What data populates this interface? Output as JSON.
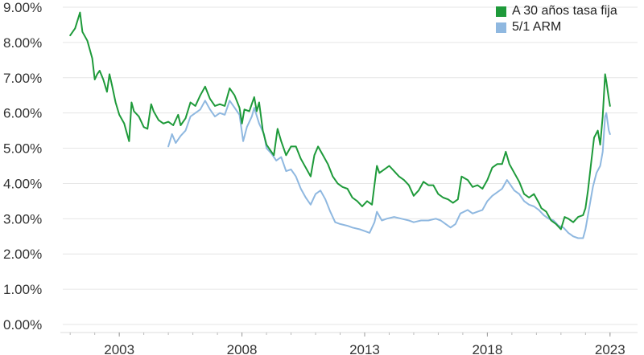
{
  "chart_data": {
    "type": "line",
    "title": "",
    "xlabel": "",
    "ylabel": "",
    "ylim": [
      0,
      9
    ],
    "xlim": [
      2000.6,
      2023.4
    ],
    "y_ticks": [
      {
        "value": 0,
        "label": "0.00%"
      },
      {
        "value": 1,
        "label": "1.00%"
      },
      {
        "value": 2,
        "label": "2.00%"
      },
      {
        "value": 3,
        "label": "3.00%"
      },
      {
        "value": 4,
        "label": "4.00%"
      },
      {
        "value": 5,
        "label": "5.00%"
      },
      {
        "value": 6,
        "label": "6.00%"
      },
      {
        "value": 7,
        "label": "7.00%"
      },
      {
        "value": 8,
        "label": "8.00%"
      },
      {
        "value": 9,
        "label": "9.00%"
      }
    ],
    "x_ticks": [
      {
        "value": 2003,
        "label": "2003"
      },
      {
        "value": 2008,
        "label": "2008"
      },
      {
        "value": 2013,
        "label": "2013"
      },
      {
        "value": 2018,
        "label": "2018"
      },
      {
        "value": 2023,
        "label": "2023"
      }
    ],
    "grid": true,
    "legend_position": "top-right",
    "series": [
      {
        "name": "A 30 años tasa fija",
        "color": "#1e9a3a",
        "points": [
          [
            2001.0,
            8.2
          ],
          [
            2001.2,
            8.4
          ],
          [
            2001.4,
            8.85
          ],
          [
            2001.5,
            8.3
          ],
          [
            2001.7,
            8.05
          ],
          [
            2001.9,
            7.55
          ],
          [
            2002.0,
            6.95
          ],
          [
            2002.1,
            7.1
          ],
          [
            2002.2,
            7.2
          ],
          [
            2002.35,
            6.95
          ],
          [
            2002.5,
            6.6
          ],
          [
            2002.6,
            7.1
          ],
          [
            2002.7,
            6.8
          ],
          [
            2002.85,
            6.3
          ],
          [
            2003.0,
            5.95
          ],
          [
            2003.2,
            5.7
          ],
          [
            2003.3,
            5.45
          ],
          [
            2003.4,
            5.2
          ],
          [
            2003.5,
            6.3
          ],
          [
            2003.6,
            6.05
          ],
          [
            2003.8,
            5.9
          ],
          [
            2004.0,
            5.6
          ],
          [
            2004.15,
            5.55
          ],
          [
            2004.3,
            6.25
          ],
          [
            2004.4,
            6.05
          ],
          [
            2004.6,
            5.8
          ],
          [
            2004.8,
            5.7
          ],
          [
            2005.0,
            5.75
          ],
          [
            2005.2,
            5.65
          ],
          [
            2005.4,
            5.95
          ],
          [
            2005.5,
            5.65
          ],
          [
            2005.7,
            5.85
          ],
          [
            2005.9,
            6.3
          ],
          [
            2006.1,
            6.2
          ],
          [
            2006.3,
            6.5
          ],
          [
            2006.5,
            6.75
          ],
          [
            2006.7,
            6.4
          ],
          [
            2006.9,
            6.2
          ],
          [
            2007.1,
            6.25
          ],
          [
            2007.3,
            6.2
          ],
          [
            2007.5,
            6.7
          ],
          [
            2007.7,
            6.5
          ],
          [
            2007.9,
            6.15
          ],
          [
            2008.0,
            5.7
          ],
          [
            2008.1,
            6.1
          ],
          [
            2008.3,
            6.05
          ],
          [
            2008.5,
            6.45
          ],
          [
            2008.6,
            6.05
          ],
          [
            2008.7,
            6.3
          ],
          [
            2008.85,
            5.5
          ],
          [
            2009.0,
            5.1
          ],
          [
            2009.2,
            4.9
          ],
          [
            2009.3,
            4.8
          ],
          [
            2009.45,
            5.55
          ],
          [
            2009.6,
            5.2
          ],
          [
            2009.8,
            4.8
          ],
          [
            2010.0,
            5.05
          ],
          [
            2010.2,
            5.05
          ],
          [
            2010.4,
            4.7
          ],
          [
            2010.6,
            4.45
          ],
          [
            2010.8,
            4.2
          ],
          [
            2010.95,
            4.8
          ],
          [
            2011.1,
            5.05
          ],
          [
            2011.3,
            4.8
          ],
          [
            2011.5,
            4.55
          ],
          [
            2011.7,
            4.2
          ],
          [
            2011.9,
            4.0
          ],
          [
            2012.1,
            3.9
          ],
          [
            2012.3,
            3.85
          ],
          [
            2012.5,
            3.6
          ],
          [
            2012.7,
            3.5
          ],
          [
            2012.9,
            3.35
          ],
          [
            2013.1,
            3.5
          ],
          [
            2013.3,
            3.4
          ],
          [
            2013.5,
            4.5
          ],
          [
            2013.6,
            4.3
          ],
          [
            2013.8,
            4.4
          ],
          [
            2014.0,
            4.5
          ],
          [
            2014.2,
            4.35
          ],
          [
            2014.4,
            4.2
          ],
          [
            2014.6,
            4.1
          ],
          [
            2014.8,
            3.95
          ],
          [
            2015.0,
            3.65
          ],
          [
            2015.2,
            3.8
          ],
          [
            2015.4,
            4.05
          ],
          [
            2015.6,
            3.95
          ],
          [
            2015.8,
            3.95
          ],
          [
            2016.0,
            3.7
          ],
          [
            2016.2,
            3.6
          ],
          [
            2016.4,
            3.55
          ],
          [
            2016.6,
            3.45
          ],
          [
            2016.8,
            3.55
          ],
          [
            2016.95,
            4.2
          ],
          [
            2017.2,
            4.1
          ],
          [
            2017.4,
            3.9
          ],
          [
            2017.6,
            3.95
          ],
          [
            2017.8,
            3.85
          ],
          [
            2018.0,
            4.1
          ],
          [
            2018.2,
            4.45
          ],
          [
            2018.4,
            4.55
          ],
          [
            2018.6,
            4.55
          ],
          [
            2018.75,
            4.9
          ],
          [
            2018.9,
            4.55
          ],
          [
            2019.1,
            4.3
          ],
          [
            2019.3,
            4.05
          ],
          [
            2019.5,
            3.7
          ],
          [
            2019.7,
            3.6
          ],
          [
            2019.9,
            3.7
          ],
          [
            2020.1,
            3.45
          ],
          [
            2020.2,
            3.3
          ],
          [
            2020.4,
            3.2
          ],
          [
            2020.6,
            2.95
          ],
          [
            2020.8,
            2.85
          ],
          [
            2021.0,
            2.7
          ],
          [
            2021.15,
            3.05
          ],
          [
            2021.3,
            3.0
          ],
          [
            2021.5,
            2.9
          ],
          [
            2021.7,
            3.05
          ],
          [
            2021.9,
            3.1
          ],
          [
            2022.0,
            3.3
          ],
          [
            2022.1,
            3.8
          ],
          [
            2022.25,
            4.7
          ],
          [
            2022.35,
            5.3
          ],
          [
            2022.5,
            5.5
          ],
          [
            2022.6,
            5.1
          ],
          [
            2022.7,
            5.9
          ],
          [
            2022.8,
            7.1
          ],
          [
            2022.85,
            6.9
          ],
          [
            2022.95,
            6.4
          ],
          [
            2023.0,
            6.2
          ]
        ]
      },
      {
        "name": "5/1 ARM",
        "color": "#8fb8e0",
        "points": [
          [
            2005.0,
            5.05
          ],
          [
            2005.15,
            5.4
          ],
          [
            2005.3,
            5.15
          ],
          [
            2005.5,
            5.35
          ],
          [
            2005.7,
            5.5
          ],
          [
            2005.9,
            5.9
          ],
          [
            2006.1,
            6.0
          ],
          [
            2006.3,
            6.1
          ],
          [
            2006.5,
            6.35
          ],
          [
            2006.7,
            6.1
          ],
          [
            2006.9,
            5.9
          ],
          [
            2007.1,
            6.0
          ],
          [
            2007.3,
            5.95
          ],
          [
            2007.5,
            6.35
          ],
          [
            2007.7,
            6.15
          ],
          [
            2007.9,
            5.95
          ],
          [
            2008.05,
            5.2
          ],
          [
            2008.2,
            5.6
          ],
          [
            2008.4,
            5.9
          ],
          [
            2008.5,
            6.15
          ],
          [
            2008.7,
            5.7
          ],
          [
            2008.9,
            5.4
          ],
          [
            2009.0,
            5.0
          ],
          [
            2009.2,
            4.85
          ],
          [
            2009.4,
            4.65
          ],
          [
            2009.6,
            4.75
          ],
          [
            2009.8,
            4.35
          ],
          [
            2010.0,
            4.4
          ],
          [
            2010.2,
            4.2
          ],
          [
            2010.4,
            3.85
          ],
          [
            2010.6,
            3.6
          ],
          [
            2010.8,
            3.4
          ],
          [
            2011.0,
            3.7
          ],
          [
            2011.2,
            3.8
          ],
          [
            2011.4,
            3.55
          ],
          [
            2011.6,
            3.2
          ],
          [
            2011.8,
            2.9
          ],
          [
            2012.0,
            2.85
          ],
          [
            2012.3,
            2.8
          ],
          [
            2012.5,
            2.75
          ],
          [
            2012.8,
            2.7
          ],
          [
            2013.0,
            2.65
          ],
          [
            2013.2,
            2.6
          ],
          [
            2013.4,
            2.9
          ],
          [
            2013.5,
            3.2
          ],
          [
            2013.7,
            2.95
          ],
          [
            2013.9,
            3.0
          ],
          [
            2014.2,
            3.05
          ],
          [
            2014.5,
            3.0
          ],
          [
            2014.8,
            2.95
          ],
          [
            2015.0,
            2.9
          ],
          [
            2015.3,
            2.95
          ],
          [
            2015.6,
            2.95
          ],
          [
            2015.9,
            3.0
          ],
          [
            2016.1,
            2.95
          ],
          [
            2016.3,
            2.85
          ],
          [
            2016.5,
            2.75
          ],
          [
            2016.7,
            2.85
          ],
          [
            2016.9,
            3.15
          ],
          [
            2017.2,
            3.25
          ],
          [
            2017.4,
            3.15
          ],
          [
            2017.6,
            3.2
          ],
          [
            2017.8,
            3.25
          ],
          [
            2018.0,
            3.5
          ],
          [
            2018.2,
            3.65
          ],
          [
            2018.4,
            3.75
          ],
          [
            2018.6,
            3.85
          ],
          [
            2018.8,
            4.1
          ],
          [
            2018.95,
            3.95
          ],
          [
            2019.1,
            3.8
          ],
          [
            2019.3,
            3.7
          ],
          [
            2019.5,
            3.5
          ],
          [
            2019.7,
            3.4
          ],
          [
            2019.9,
            3.35
          ],
          [
            2020.1,
            3.25
          ],
          [
            2020.3,
            3.1
          ],
          [
            2020.5,
            3.0
          ],
          [
            2020.7,
            2.95
          ],
          [
            2020.9,
            2.8
          ],
          [
            2021.1,
            2.75
          ],
          [
            2021.3,
            2.6
          ],
          [
            2021.5,
            2.5
          ],
          [
            2021.7,
            2.45
          ],
          [
            2021.9,
            2.45
          ],
          [
            2022.0,
            2.7
          ],
          [
            2022.15,
            3.3
          ],
          [
            2022.3,
            3.9
          ],
          [
            2022.45,
            4.3
          ],
          [
            2022.6,
            4.5
          ],
          [
            2022.7,
            4.9
          ],
          [
            2022.8,
            5.9
          ],
          [
            2022.85,
            6.0
          ],
          [
            2022.95,
            5.5
          ],
          [
            2023.0,
            5.4
          ]
        ]
      }
    ]
  }
}
